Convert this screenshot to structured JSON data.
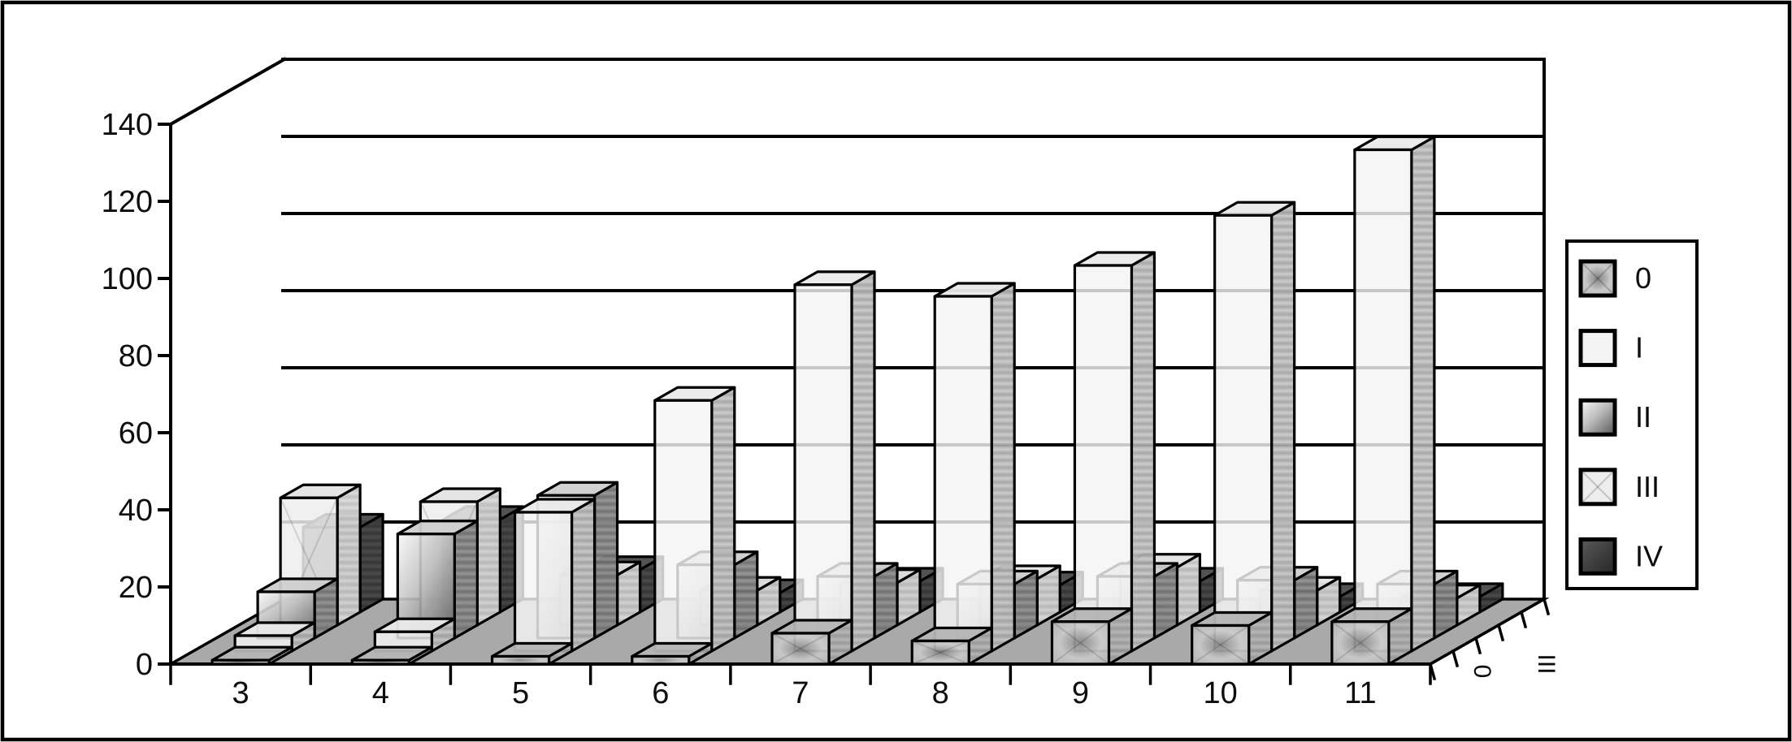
{
  "window": {
    "background": "#ffffff",
    "frame_color": "#000000",
    "plot_floor_color": "#a9a9a9",
    "line_color": "#000000"
  },
  "chart_data": {
    "type": "bar",
    "subtype": "3d-column-with-depth",
    "title": "",
    "xlabel": "",
    "ylabel": "",
    "categories": [
      "3",
      "4",
      "5",
      "6",
      "7",
      "8",
      "9",
      "10",
      "11"
    ],
    "series": [
      {
        "name": "0",
        "values": [
          1,
          1,
          2,
          2,
          8,
          6,
          11,
          10,
          11
        ],
        "color": "#c0c0c0",
        "fill_style": "radial-cross"
      },
      {
        "name": "I",
        "values": [
          4,
          5,
          36,
          65,
          95,
          92,
          100,
          113,
          130
        ],
        "color": "#f4f4f4",
        "fill_style": "solid-white"
      },
      {
        "name": "II",
        "values": [
          12,
          27,
          37,
          19,
          16,
          14,
          16,
          15,
          14
        ],
        "color": "#8f8f8f",
        "fill_style": "diagonal-gradient"
      },
      {
        "name": "III",
        "values": [
          33,
          32,
          13,
          9,
          11,
          12,
          15,
          9,
          7
        ],
        "color": "#ededed",
        "fill_style": "pale-cross"
      },
      {
        "name": "IV",
        "values": [
          22,
          24,
          11,
          5,
          8,
          7,
          8,
          4,
          4
        ],
        "color": "#383838",
        "fill_style": "solid-dark"
      }
    ],
    "ylim": [
      0,
      140
    ],
    "yticks": [
      "0",
      "20",
      "40",
      "60",
      "80",
      "100",
      "120",
      "140"
    ],
    "depth_axis_tick_labels": [
      "0",
      "III"
    ],
    "grid": true,
    "legend": {
      "position": "right",
      "labels": [
        "0",
        "I",
        "II",
        "III",
        "IV"
      ]
    }
  }
}
